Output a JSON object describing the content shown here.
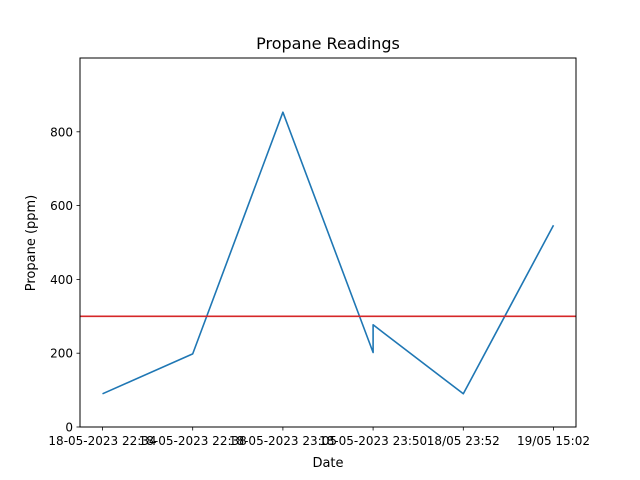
{
  "chart_data": {
    "type": "line",
    "title": "Propane Readings",
    "xlabel": "Date",
    "ylabel": "Propane (ppm)",
    "x_tick_labels": [
      "18-05-2023 22:34",
      "18-05-2023 22:38",
      "18-05-2023 23:05",
      "18-05-2023 23:50",
      "18/05 23:52",
      "19/05 15:02"
    ],
    "y_ticks": [
      0,
      200,
      400,
      600,
      800
    ],
    "ylim": [
      0,
      1000
    ],
    "grid": false,
    "legend": "none",
    "series": [
      {
        "color": "#1f77b4",
        "points": [
          {
            "x": "18-05-2023 22:34",
            "y": 90
          },
          {
            "x": "18-05-2023 22:38",
            "y": 198
          },
          {
            "x": "18-05-2023 23:05",
            "y": 853
          },
          {
            "x": "18-05-2023 23:50",
            "y": 202
          },
          {
            "x": "18-05-2023 23:50",
            "y": 277
          },
          {
            "x": "18/05 23:52",
            "y": 90
          },
          {
            "x": "19/05 15:02",
            "y": 547
          }
        ]
      }
    ],
    "threshold": {
      "y": 300,
      "color": "#d62728"
    }
  }
}
